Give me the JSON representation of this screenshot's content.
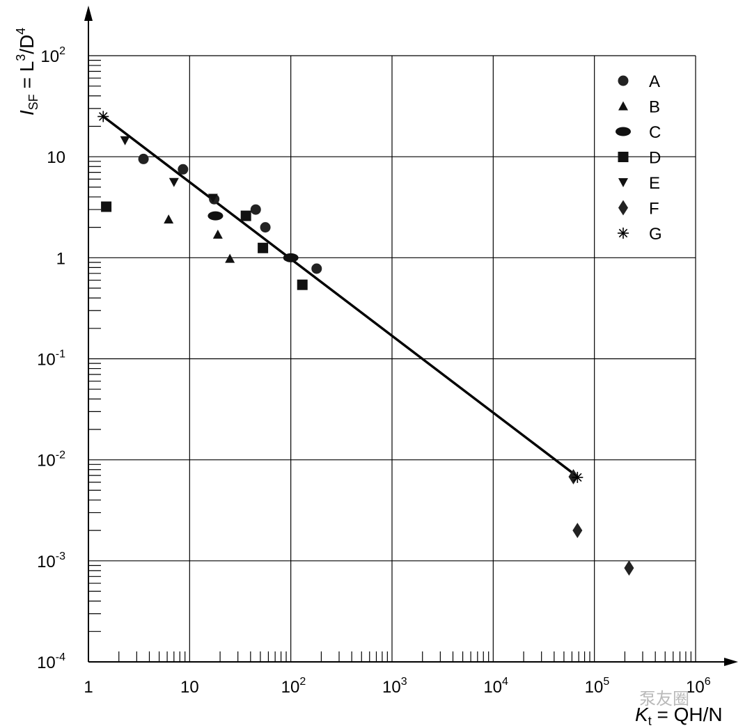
{
  "chart_data": {
    "type": "scatter",
    "xlabel": {
      "base": "K",
      "sub": "t",
      "rest": " = QH/N"
    },
    "ylabel": {
      "base": "I",
      "sub": "SF",
      "rest": " = L",
      "sup1": "3",
      "mid": "/D",
      "sup2": "4"
    },
    "x_scale": "log",
    "y_scale": "log",
    "xlim": [
      1,
      1000000
    ],
    "ylim": [
      0.0001,
      100
    ],
    "x_ticks": [
      {
        "value": 1,
        "base": "1",
        "exp": ""
      },
      {
        "value": 10,
        "base": "10",
        "exp": ""
      },
      {
        "value": 100,
        "base": "10",
        "exp": "2"
      },
      {
        "value": 1000,
        "base": "10",
        "exp": "3"
      },
      {
        "value": 10000,
        "base": "10",
        "exp": "4"
      },
      {
        "value": 100000,
        "base": "10",
        "exp": "5"
      },
      {
        "value": 1000000,
        "base": "10",
        "exp": "6"
      }
    ],
    "y_ticks": [
      {
        "value": 0.0001,
        "base": "10",
        "exp": "-4"
      },
      {
        "value": 0.001,
        "base": "10",
        "exp": "-3"
      },
      {
        "value": 0.01,
        "base": "10",
        "exp": "-2"
      },
      {
        "value": 0.1,
        "base": "10",
        "exp": "-1"
      },
      {
        "value": 1,
        "base": "1",
        "exp": ""
      },
      {
        "value": 10,
        "base": "10",
        "exp": ""
      },
      {
        "value": 100,
        "base": "10",
        "exp": "2"
      }
    ],
    "grid": true,
    "legend_position": "top-right",
    "series": [
      {
        "name": "A",
        "marker": "circle",
        "points": [
          [
            3.5,
            9.5
          ],
          [
            8.6,
            7.5
          ],
          [
            17.5,
            3.8
          ],
          [
            45,
            3.0
          ],
          [
            56,
            2.0
          ],
          [
            180,
            0.78
          ]
        ]
      },
      {
        "name": "B",
        "marker": "triangle-up",
        "points": [
          [
            6.2,
            2.4
          ],
          [
            19,
            1.7
          ],
          [
            25,
            0.98
          ]
        ]
      },
      {
        "name": "C",
        "marker": "ellipse",
        "points": [
          [
            18,
            2.6
          ],
          [
            100,
            1.0
          ]
        ]
      },
      {
        "name": "D",
        "marker": "square",
        "points": [
          [
            1.5,
            3.2
          ],
          [
            36,
            2.6
          ],
          [
            53,
            1.25
          ],
          [
            130,
            0.54
          ]
        ]
      },
      {
        "name": "E",
        "marker": "triangle-down",
        "points": [
          [
            2.3,
            14.5
          ],
          [
            7.0,
            5.6
          ],
          [
            17,
            3.9
          ]
        ]
      },
      {
        "name": "F",
        "marker": "diamond",
        "points": [
          [
            62000,
            0.0068
          ],
          [
            68000,
            0.002
          ],
          [
            220000,
            0.00085
          ]
        ]
      },
      {
        "name": "G",
        "marker": "asterisk",
        "points": [
          [
            1.4,
            25
          ],
          [
            68000,
            0.0067
          ]
        ]
      }
    ],
    "fit_line": {
      "x": [
        1.4,
        60000
      ],
      "y": [
        25,
        0.0075
      ]
    }
  },
  "watermark": "泵友圈"
}
